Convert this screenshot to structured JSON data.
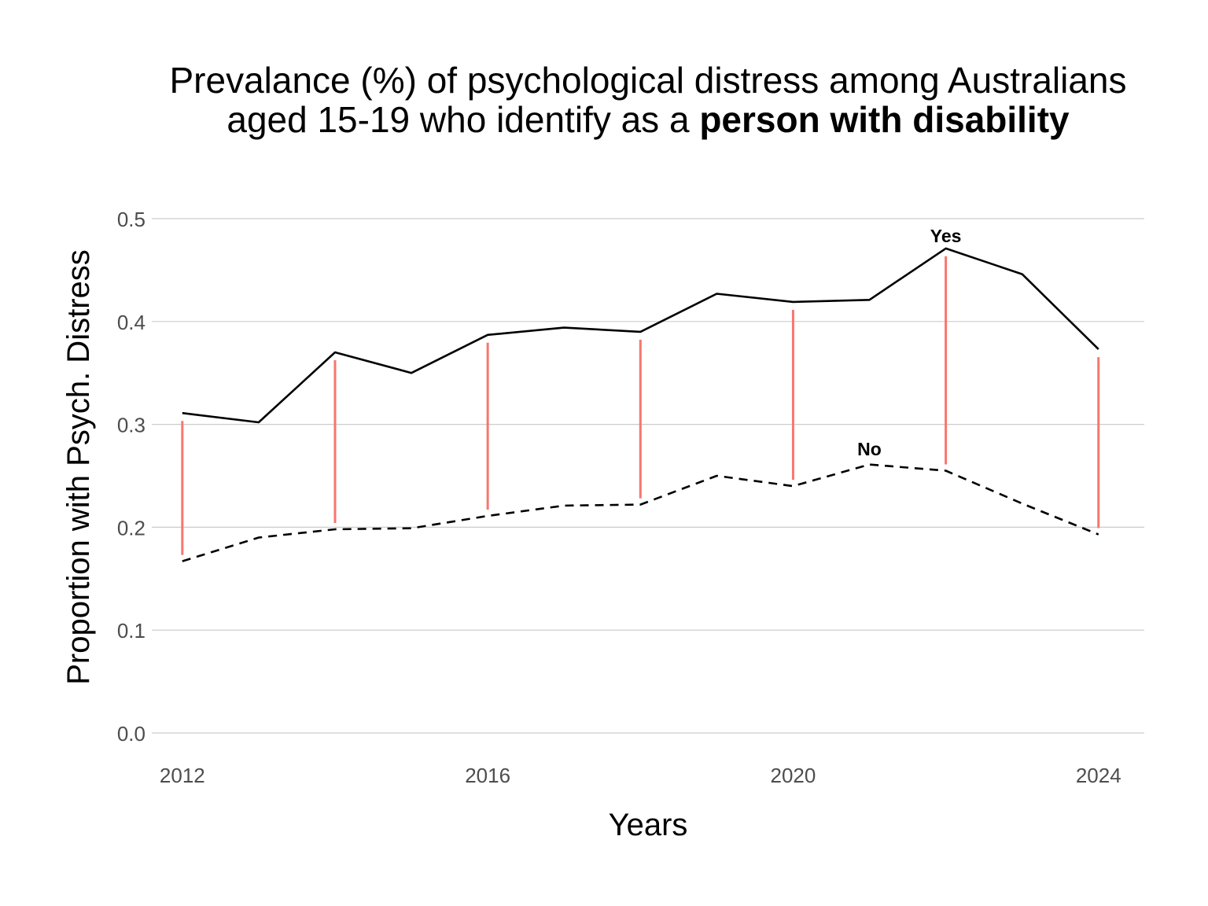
{
  "chart_data": {
    "type": "line",
    "title_line1": "Prevalance (%) of psychological distress among Australians",
    "title_line2_regular": "aged 15-19 who identify as a ",
    "title_line2_bold": "person with disability",
    "xlabel": "Years",
    "ylabel": "Proportion with Psych. Distress",
    "xlim": [
      2011.6,
      2024.6
    ],
    "ylim": [
      0,
      0.5
    ],
    "x_ticks": [
      2012,
      2016,
      2020,
      2024
    ],
    "x_tick_labels": [
      "2012",
      "2016",
      "2020",
      "2024"
    ],
    "y_ticks": [
      0.0,
      0.1,
      0.2,
      0.3,
      0.4,
      0.5
    ],
    "y_tick_labels": [
      "0.0",
      "0.1",
      "0.2",
      "0.3",
      "0.4",
      "0.5"
    ],
    "grid": "horizontal",
    "x": [
      2012,
      2013,
      2014,
      2015,
      2016,
      2017,
      2018,
      2019,
      2020,
      2021,
      2022,
      2023,
      2024
    ],
    "series": [
      {
        "name": "Yes",
        "style": "solid",
        "color": "#000000",
        "values": [
          0.311,
          0.302,
          0.37,
          0.35,
          0.387,
          0.394,
          0.39,
          0.427,
          0.419,
          0.421,
          0.471,
          0.446,
          0.373
        ]
      },
      {
        "name": "No",
        "style": "dashed",
        "color": "#000000",
        "values": [
          0.167,
          0.19,
          0.198,
          0.199,
          0.211,
          0.221,
          0.222,
          0.25,
          0.24,
          0.261,
          0.255,
          0.223,
          0.193
        ]
      }
    ],
    "gap_segments": {
      "color": "#f8766d",
      "years": [
        2012,
        2014,
        2016,
        2018,
        2020,
        2022,
        2024
      ]
    },
    "annotations": [
      {
        "text": "Yes",
        "x": 2022,
        "y": 0.483
      },
      {
        "text": "No",
        "x": 2021,
        "y": 0.276
      }
    ]
  }
}
